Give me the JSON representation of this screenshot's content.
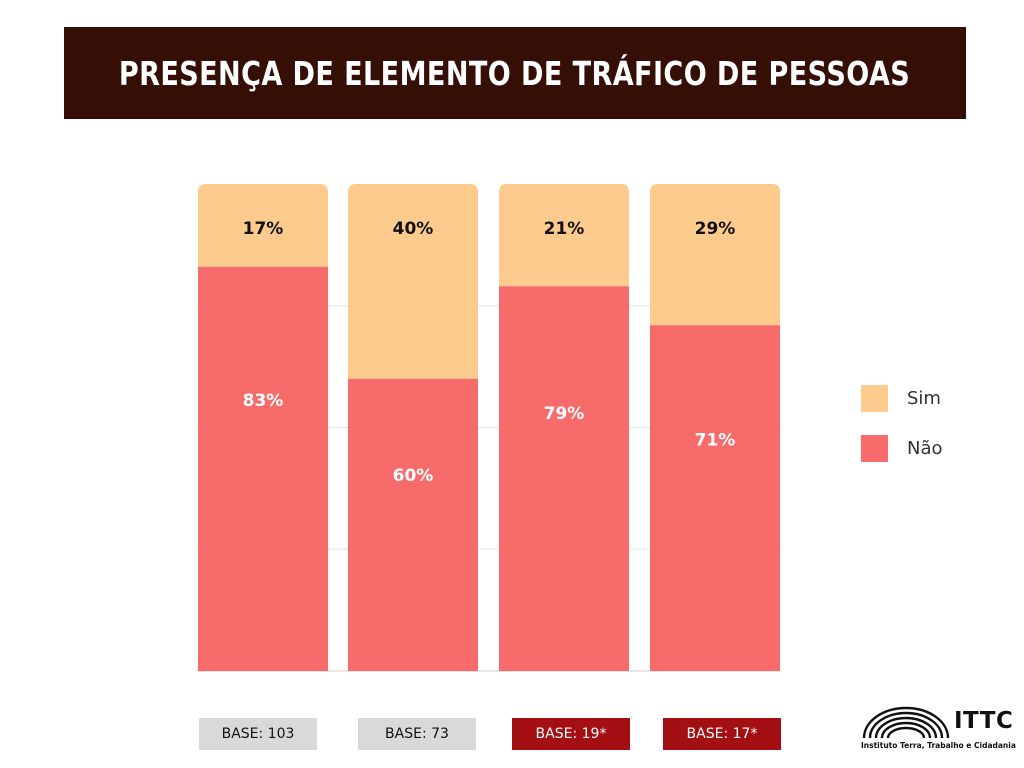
{
  "header": {
    "title": "PRESENÇA DE ELEMENTO DE TRÁFICO DE PESSOAS"
  },
  "colors": {
    "sim": "#fdcb8e",
    "nao": "#f76b6b",
    "title_bg": "#350f05",
    "base_gray": "#d9d9d9",
    "base_red": "#a30f12"
  },
  "chart_data": {
    "type": "bar",
    "stacked": true,
    "categories": [
      "BASE: 103",
      "BASE: 73",
      "BASE: 19*",
      "BASE: 17*"
    ],
    "series": [
      {
        "name": "Não",
        "values": [
          83,
          60,
          79,
          71
        ],
        "labels": [
          "83%",
          "60%",
          "79%",
          "71%"
        ],
        "color": "#f76b6b"
      },
      {
        "name": "Sim",
        "values": [
          17,
          40,
          21,
          29
        ],
        "labels": [
          "17%",
          "40%",
          "21%",
          "29%"
        ],
        "color": "#fdcb8e"
      }
    ],
    "ylim": [
      0,
      100
    ],
    "grid": true,
    "legend": "right"
  },
  "legend": {
    "items": [
      {
        "label": "Sim"
      },
      {
        "label": "Não"
      }
    ]
  },
  "bases": [
    {
      "label": "BASE: 103",
      "style": "gray"
    },
    {
      "label": "BASE: 73",
      "style": "gray"
    },
    {
      "label": "BASE: 19*",
      "style": "red"
    },
    {
      "label": "BASE: 17*",
      "style": "red"
    }
  ],
  "logo": {
    "name": "ITTC",
    "full_name": "Instituto Terra, Trabalho e Cidadania"
  }
}
